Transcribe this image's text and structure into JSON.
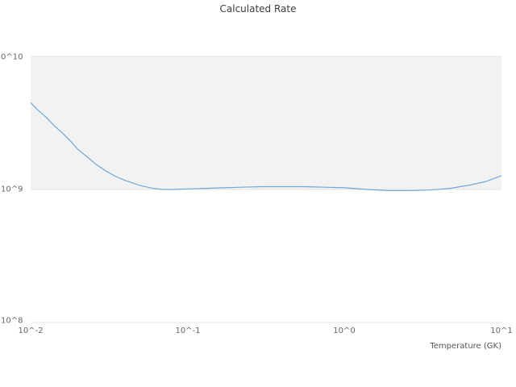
{
  "chart_data": {
    "type": "line",
    "title": "Calculated Rate",
    "xlabel": "Temperature (GK)",
    "ylabel": "",
    "xscale": "log",
    "yscale": "log",
    "xlim": [
      0.01,
      10
    ],
    "ylim": [
      100000000.0,
      10000000000.0
    ],
    "x_tick_labels": [
      "10^-2",
      "10^-1",
      "10^0",
      "10^1"
    ],
    "y_tick_labels": [
      "0^10",
      "10^9",
      "10^8"
    ],
    "y_grid_values": [
      100000000.0,
      1000000000.0,
      10000000000.0
    ],
    "shaded_band_y": [
      1000000000.0,
      10000000000.0
    ],
    "legend": "none",
    "series_name": "Calculated Rate",
    "x": [
      0.01,
      0.011,
      0.0125,
      0.014,
      0.016,
      0.018,
      0.02,
      0.023,
      0.026,
      0.03,
      0.035,
      0.04,
      0.05,
      0.06,
      0.07,
      0.08,
      0.1,
      0.13,
      0.17,
      0.22,
      0.3,
      0.4,
      0.55,
      0.75,
      1.0,
      1.4,
      1.9,
      2.6,
      3.5,
      4.7,
      6.3,
      8.0,
      10.0
    ],
    "y": [
      4500000000.0,
      4000000000.0,
      3500000000.0,
      3050000000.0,
      2650000000.0,
      2300000000.0,
      2000000000.0,
      1750000000.0,
      1550000000.0,
      1380000000.0,
      1250000000.0,
      1170000000.0,
      1070000000.0,
      1020000000.0,
      1000000000.0,
      1000000000.0,
      1010000000.0,
      1020000000.0,
      1030000000.0,
      1040000000.0,
      1050000000.0,
      1050000000.0,
      1050000000.0,
      1040000000.0,
      1030000000.0,
      1000000000.0,
      980000000.0,
      980000000.0,
      990000000.0,
      1020000000.0,
      1080000000.0,
      1150000000.0,
      1270000000.0
    ],
    "colors": {
      "line": "#6fa8dc",
      "band": "#f2f2f2",
      "grid": "#e3e3e3",
      "text": "#666666"
    }
  }
}
